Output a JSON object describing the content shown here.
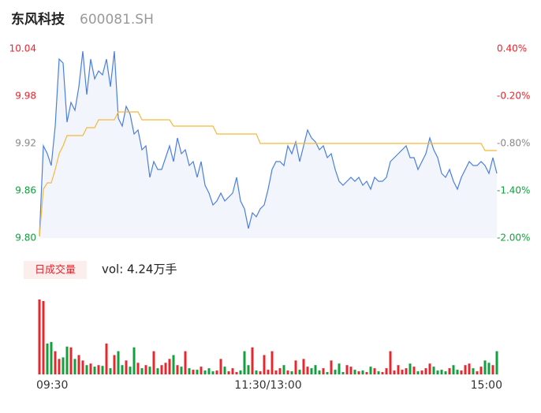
{
  "header": {
    "name": "东风科技",
    "code": "600081.SH"
  },
  "chart_data": {
    "type": "intraday",
    "xlim": [
      0,
      116
    ],
    "xticks": [
      {
        "value": 0,
        "label": "09:30"
      },
      {
        "value": 58,
        "label": "11:30/13:00"
      },
      {
        "value": 116,
        "label": "15:00"
      }
    ],
    "ylim": [
      9.8,
      10.04
    ],
    "yticks": [
      {
        "value": 10.04,
        "label": "10.04"
      },
      {
        "value": 9.98,
        "label": "9.98"
      },
      {
        "value": 9.92,
        "label": "9.92"
      },
      {
        "value": 9.86,
        "label": "9.86"
      },
      {
        "value": 9.8,
        "label": "9.80"
      }
    ],
    "ytick_colors": [
      "#e8262d",
      "#e8262d",
      "#888888",
      "#11a03c",
      "#11a03c"
    ],
    "y2lim": [
      -2.0,
      0.4
    ],
    "y2ticks": [
      {
        "value": 0.4,
        "label": "0.40%"
      },
      {
        "value": -0.2,
        "label": "-0.20%"
      },
      {
        "value": -0.8,
        "label": "-0.80%"
      },
      {
        "value": -1.4,
        "label": "-1.40%"
      },
      {
        "value": -2.0,
        "label": "-2.00%"
      }
    ],
    "series": [
      {
        "name": "price",
        "color": "#4a7fe0",
        "fill": "#f2f5fc",
        "values": [
          9.802,
          9.917,
          9.907,
          9.892,
          9.942,
          10.027,
          10.022,
          9.947,
          9.972,
          9.962,
          9.992,
          10.037,
          9.982,
          10.027,
          10.002,
          10.012,
          10.007,
          10.027,
          9.992,
          10.037,
          9.952,
          9.942,
          9.967,
          9.957,
          9.932,
          9.937,
          9.912,
          9.917,
          9.877,
          9.897,
          9.887,
          9.887,
          9.902,
          9.917,
          9.897,
          9.927,
          9.907,
          9.912,
          9.892,
          9.897,
          9.877,
          9.897,
          9.867,
          9.857,
          9.842,
          9.847,
          9.857,
          9.847,
          9.852,
          9.857,
          9.877,
          9.847,
          9.837,
          9.812,
          9.832,
          9.827,
          9.837,
          9.842,
          9.862,
          9.887,
          9.897,
          9.897,
          9.892,
          9.917,
          9.907,
          9.922,
          9.897,
          9.917,
          9.937,
          9.927,
          9.922,
          9.912,
          9.917,
          9.902,
          9.907,
          9.887,
          9.872,
          9.867,
          9.872,
          9.877,
          9.872,
          9.877,
          9.867,
          9.872,
          9.862,
          9.877,
          9.872,
          9.872,
          9.877,
          9.897,
          9.902,
          9.907,
          9.912,
          9.917,
          9.902,
          9.902,
          9.887,
          9.897,
          9.907,
          9.927,
          9.912,
          9.902,
          9.882,
          9.877,
          9.887,
          9.872,
          9.862,
          9.877,
          9.887,
          9.897,
          9.892,
          9.892,
          9.897,
          9.892,
          9.882,
          9.902,
          9.882
        ]
      },
      {
        "name": "average",
        "color": "#f5b93a",
        "values": [
          9.802,
          9.862,
          9.87,
          9.87,
          9.887,
          9.907,
          9.917,
          9.93,
          9.93,
          9.93,
          9.93,
          9.93,
          9.94,
          9.94,
          9.94,
          9.95,
          9.95,
          9.95,
          9.95,
          9.95,
          9.96,
          9.96,
          9.96,
          9.96,
          9.96,
          9.96,
          9.95,
          9.95,
          9.95,
          9.95,
          9.95,
          9.95,
          9.95,
          9.95,
          9.942,
          9.942,
          9.942,
          9.942,
          9.942,
          9.942,
          9.942,
          9.942,
          9.942,
          9.942,
          9.942,
          9.932,
          9.932,
          9.932,
          9.932,
          9.932,
          9.932,
          9.932,
          9.932,
          9.932,
          9.932,
          9.932,
          9.92,
          9.92,
          9.92,
          9.92,
          9.92,
          9.92,
          9.92,
          9.92,
          9.92,
          9.92,
          9.92,
          9.92,
          9.92,
          9.92,
          9.92,
          9.92,
          9.92,
          9.92,
          9.92,
          9.92,
          9.92,
          9.92,
          9.92,
          9.92,
          9.92,
          9.92,
          9.92,
          9.92,
          9.92,
          9.92,
          9.92,
          9.92,
          9.92,
          9.92,
          9.92,
          9.92,
          9.92,
          9.92,
          9.92,
          9.92,
          9.92,
          9.92,
          9.92,
          9.92,
          9.92,
          9.92,
          9.92,
          9.92,
          9.92,
          9.92,
          9.92,
          9.92,
          9.92,
          9.92,
          9.92,
          9.92,
          9.92,
          9.911,
          9.911,
          9.911,
          9.911
        ]
      }
    ],
    "volume": {
      "title": "日成交量",
      "label": "vol: 4.24万手",
      "ylim": [
        0,
        100
      ],
      "up_color": "#e8262d",
      "down_color": "#11a03c",
      "values": [
        97,
        95,
        40,
        42,
        30,
        20,
        22,
        36,
        35,
        20,
        25,
        18,
        12,
        14,
        10,
        12,
        11,
        40,
        8,
        25,
        30,
        12,
        18,
        10,
        35,
        15,
        8,
        12,
        10,
        30,
        8,
        12,
        15,
        20,
        25,
        12,
        10,
        30,
        8,
        6,
        6,
        10,
        5,
        8,
        4,
        5,
        20,
        10,
        4,
        8,
        3,
        5,
        30,
        12,
        35,
        5,
        4,
        25,
        6,
        30,
        5,
        8,
        12,
        5,
        4,
        18,
        6,
        20,
        10,
        8,
        12,
        5,
        8,
        3,
        18,
        6,
        14,
        3,
        12,
        10,
        6,
        4,
        5,
        3,
        10,
        8,
        4,
        3,
        8,
        30,
        5,
        12,
        6,
        8,
        14,
        10,
        4,
        5,
        8,
        14,
        10,
        5,
        6,
        4,
        8,
        12,
        6,
        5,
        12,
        14,
        8,
        4,
        10,
        18,
        15,
        12,
        30
      ]
    }
  }
}
